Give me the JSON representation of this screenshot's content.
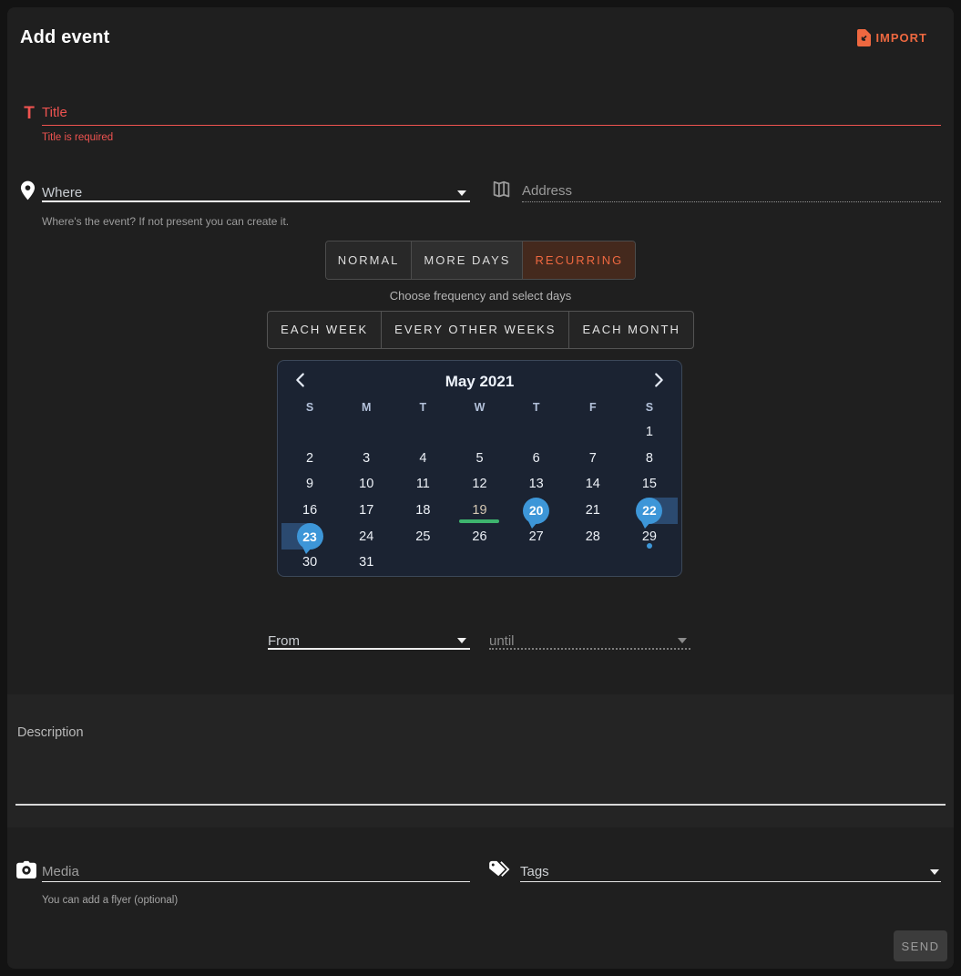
{
  "header": {
    "title": "Add event",
    "import_label": "IMPORT"
  },
  "title_field": {
    "icon_glyph": "T",
    "placeholder": "Title",
    "error": "Title is required"
  },
  "where_field": {
    "placeholder": "Where",
    "helper": "Where's the event? If not present you can create it."
  },
  "address_field": {
    "placeholder": "Address"
  },
  "tabs": [
    {
      "label": "NORMAL",
      "selected": false
    },
    {
      "label": "MORE DAYS",
      "selected": false
    },
    {
      "label": "RECURRING",
      "selected": true
    }
  ],
  "frequency": {
    "hint": "Choose frequency and select days",
    "options": [
      "EACH WEEK",
      "EVERY OTHER WEEKS",
      "EACH MONTH"
    ]
  },
  "calendar": {
    "month_title": "May 2021",
    "weekdays": [
      "S",
      "M",
      "T",
      "W",
      "T",
      "F",
      "S"
    ],
    "weeks": [
      [
        null,
        null,
        null,
        null,
        null,
        null,
        1
      ],
      [
        2,
        3,
        4,
        5,
        6,
        7,
        8
      ],
      [
        9,
        10,
        11,
        12,
        13,
        14,
        15
      ],
      [
        16,
        17,
        18,
        19,
        20,
        21,
        22
      ],
      [
        23,
        24,
        25,
        26,
        27,
        28,
        29
      ],
      [
        30,
        31,
        null,
        null,
        null,
        null,
        null
      ]
    ],
    "balloon_days": [
      20,
      22,
      23
    ],
    "range": {
      "start": 22,
      "end": 23
    },
    "underline_day": 19,
    "today_day": 19,
    "dot_day": 29
  },
  "time_range": {
    "from_label": "From",
    "until_label": "until"
  },
  "description": {
    "placeholder": "Description"
  },
  "media_field": {
    "placeholder": "Media",
    "helper": "You can add a flyer (optional)"
  },
  "tags_field": {
    "placeholder": "Tags"
  },
  "footer": {
    "send_label": "SEND"
  },
  "colors": {
    "accent": "#ee6840",
    "error": "#ef5350",
    "blue": "#3d96d8",
    "band": "#2b4a70",
    "green": "#3eb46e",
    "cal-bg": "#1b2332"
  }
}
